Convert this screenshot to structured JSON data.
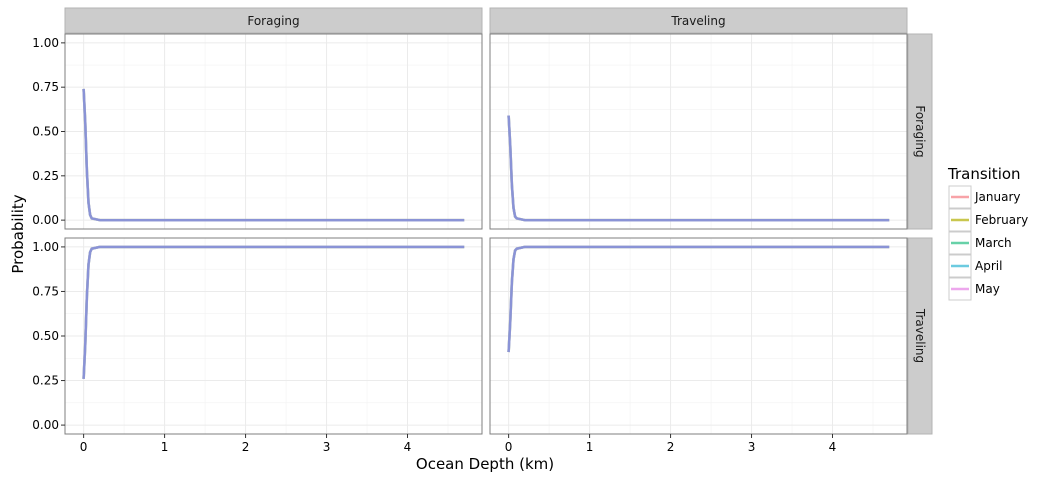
{
  "chart_data": {
    "type": "line",
    "facet_grid": {
      "columns": [
        "Foraging",
        "Traveling"
      ],
      "rows": [
        "Foraging",
        "Traveling"
      ]
    },
    "xlabel": "Ocean Depth (km)",
    "ylabel": "Probability",
    "xlim": [
      -0.23,
      4.92
    ],
    "ylim": [
      -0.05,
      1.05
    ],
    "x_ticks": [
      0,
      1,
      2,
      3,
      4
    ],
    "x_tick_labels": [
      "0",
      "1",
      "2",
      "3",
      "4"
    ],
    "y_ticks": [
      0,
      0.25,
      0.5,
      0.75,
      1
    ],
    "y_tick_labels": [
      "0.00",
      "0.25",
      "0.50",
      "0.75",
      "1.00"
    ],
    "grid": true,
    "legend": {
      "title": "Transition",
      "position": "right",
      "entries": [
        {
          "name": "January",
          "color": "#F8A3A8"
        },
        {
          "name": "February",
          "color": "#C9C74E"
        },
        {
          "name": "March",
          "color": "#67D1A8"
        },
        {
          "name": "April",
          "color": "#6CCBE0"
        },
        {
          "name": "May",
          "color": "#EDA7ED"
        }
      ]
    },
    "overlay_color": "#8A93D6",
    "panels": [
      {
        "row": "Foraging",
        "col": "Foraging",
        "x": [
          0,
          0.02,
          0.04,
          0.06,
          0.08,
          0.1,
          0.2,
          0.5,
          1,
          2,
          3,
          4,
          4.7
        ],
        "y": [
          0.74,
          0.55,
          0.28,
          0.1,
          0.03,
          0.01,
          0.0,
          0.0,
          0.0,
          0.0,
          0.0,
          0.0,
          0.0
        ]
      },
      {
        "row": "Foraging",
        "col": "Traveling",
        "x": [
          0,
          0.02,
          0.04,
          0.06,
          0.08,
          0.1,
          0.2,
          0.5,
          1,
          2,
          3,
          4,
          4.7
        ],
        "y": [
          0.59,
          0.42,
          0.2,
          0.07,
          0.02,
          0.01,
          0.0,
          0.0,
          0.0,
          0.0,
          0.0,
          0.0,
          0.0
        ]
      },
      {
        "row": "Traveling",
        "col": "Foraging",
        "x": [
          0,
          0.02,
          0.04,
          0.06,
          0.08,
          0.1,
          0.2,
          0.5,
          1,
          2,
          3,
          4,
          4.7
        ],
        "y": [
          0.26,
          0.45,
          0.72,
          0.9,
          0.97,
          0.99,
          1.0,
          1.0,
          1.0,
          1.0,
          1.0,
          1.0,
          1.0
        ]
      },
      {
        "row": "Traveling",
        "col": "Traveling",
        "x": [
          0,
          0.02,
          0.04,
          0.06,
          0.08,
          0.1,
          0.2,
          0.5,
          1,
          2,
          3,
          4,
          4.7
        ],
        "y": [
          0.41,
          0.58,
          0.8,
          0.93,
          0.98,
          0.99,
          1.0,
          1.0,
          1.0,
          1.0,
          1.0,
          1.0,
          1.0
        ]
      }
    ]
  }
}
